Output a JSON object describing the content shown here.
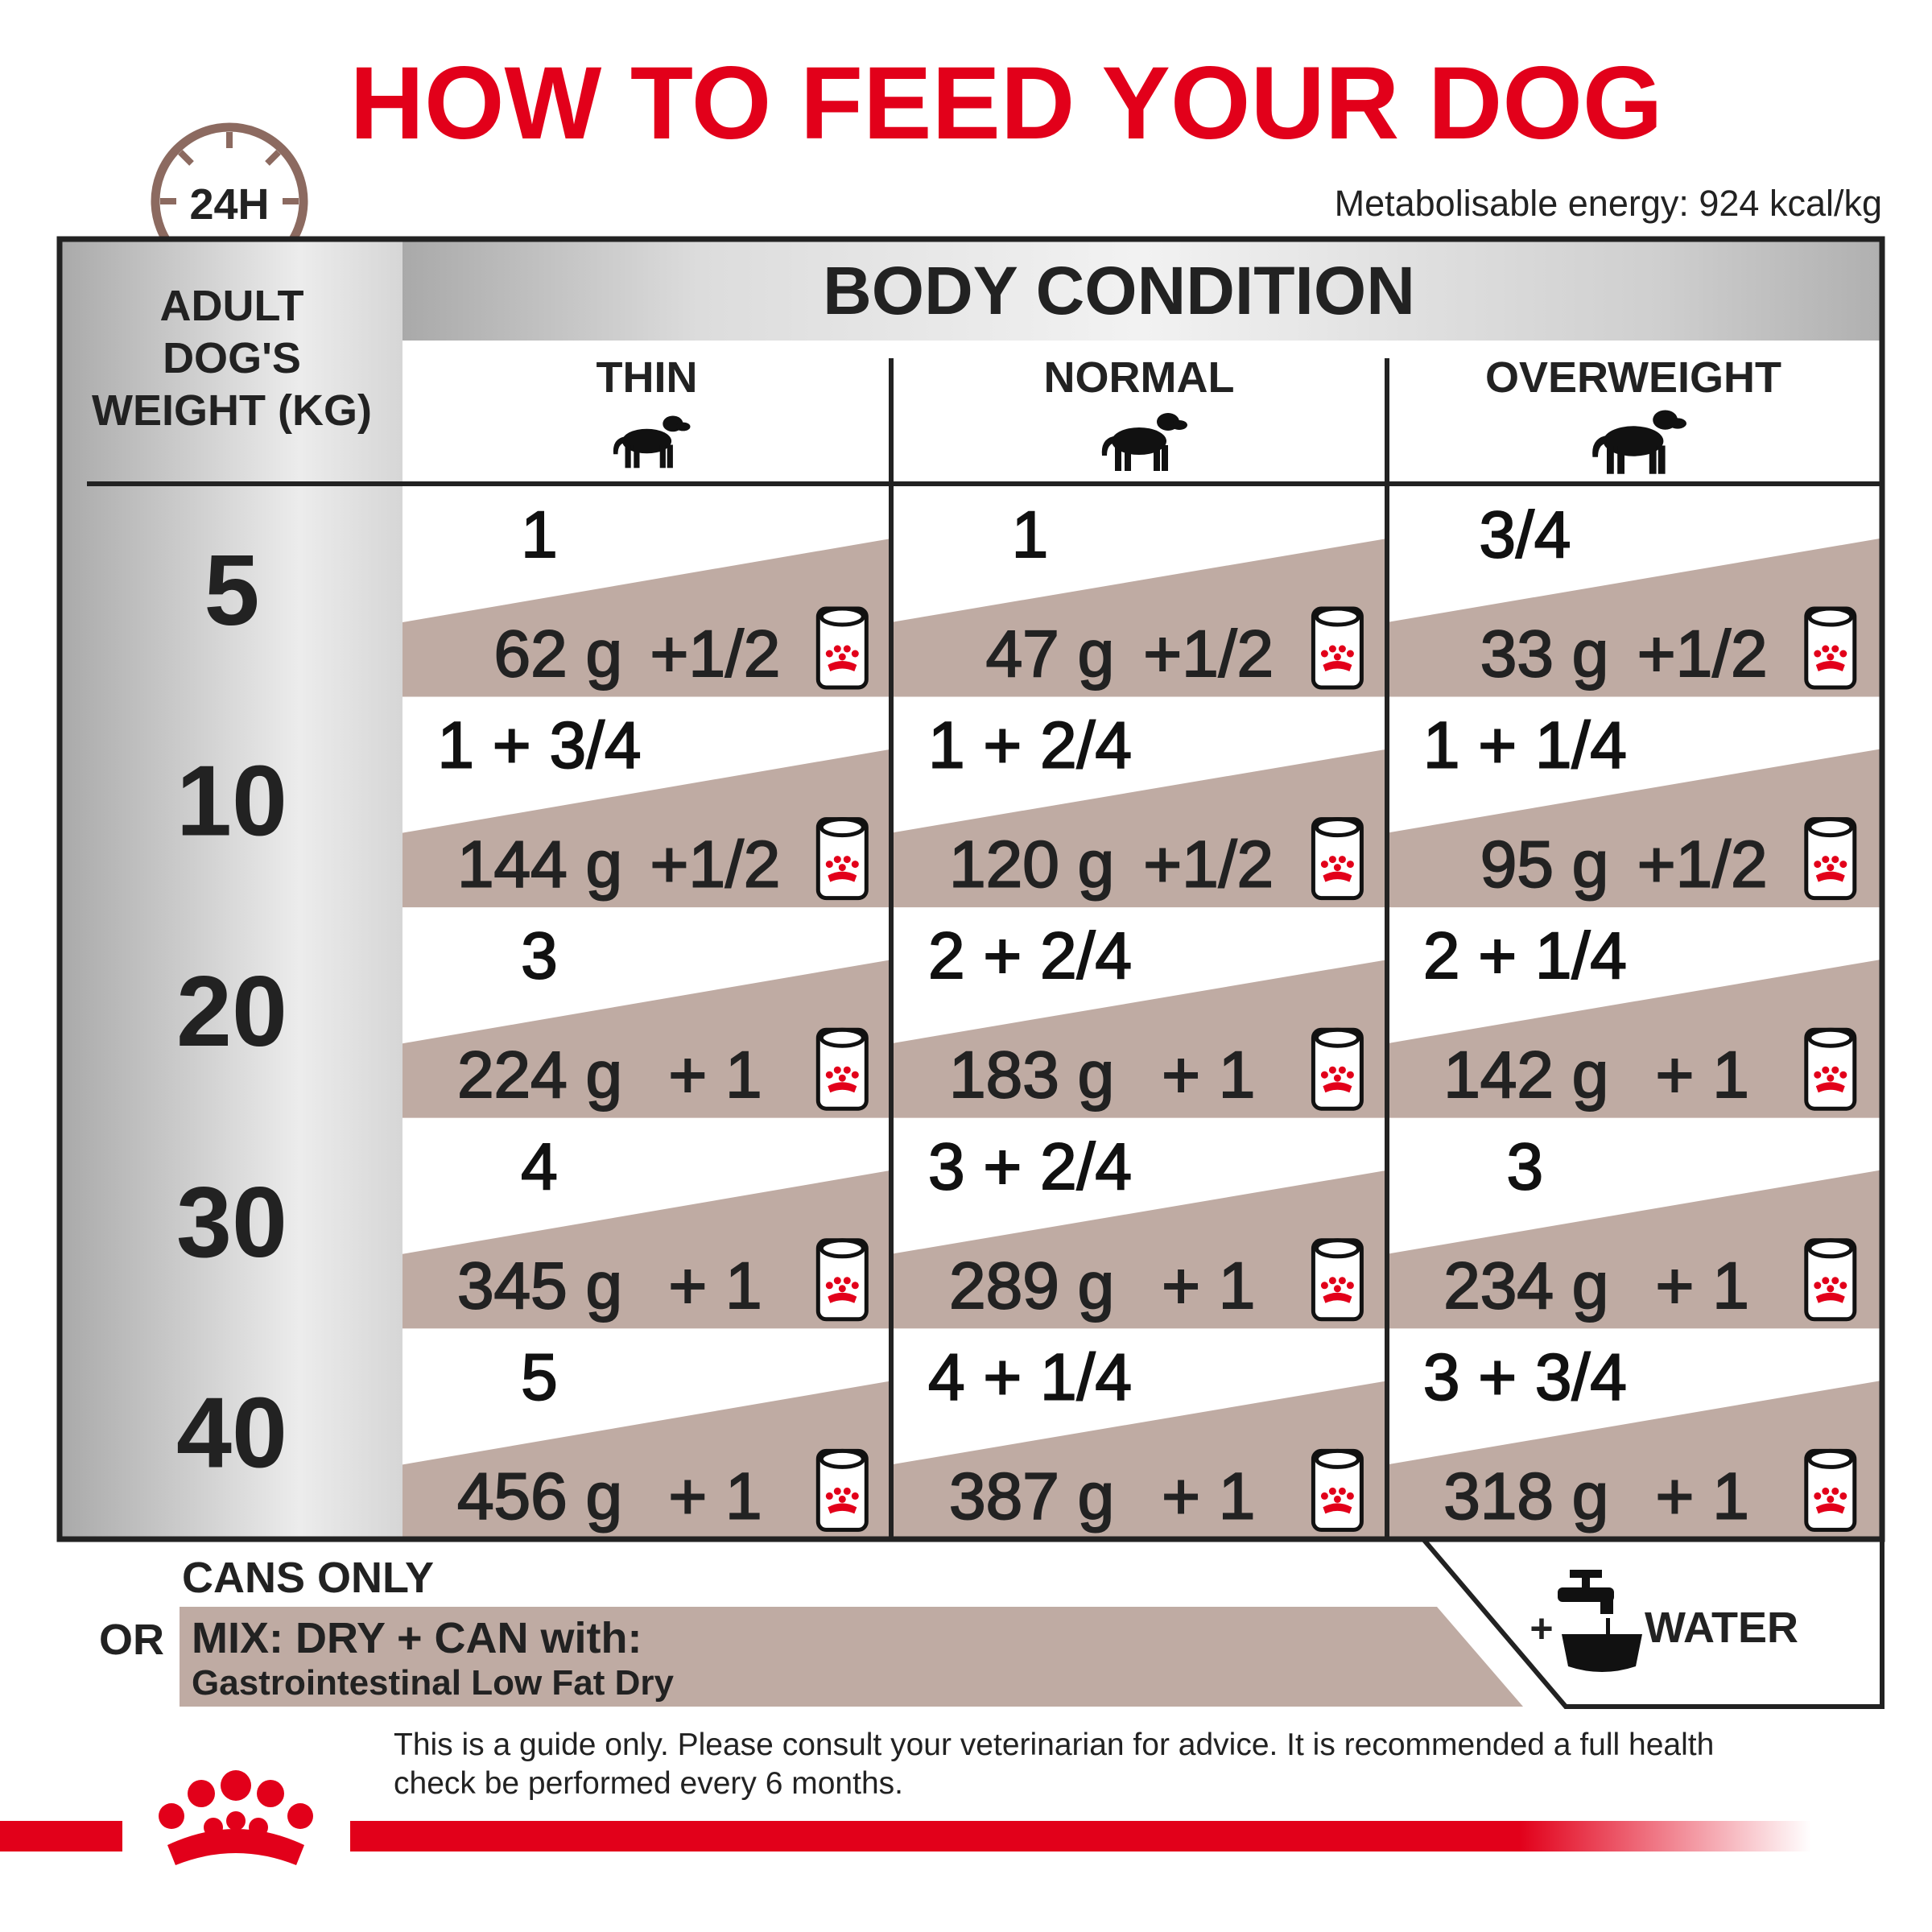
{
  "title": "HOW TO FEED YOUR DOG",
  "clock_label": "24H",
  "energy": "Metabolisable energy: 924 kcal/kg",
  "table": {
    "weight_header": [
      "ADULT",
      "DOG'S",
      "WEIGHT (KG)"
    ],
    "condition_header": "BODY CONDITION",
    "columns": [
      "THIN",
      "NORMAL",
      "OVERWEIGHT"
    ],
    "rows": [
      {
        "weight": "5",
        "cells": [
          {
            "cans": "1",
            "grams": "62 g",
            "plus": "+1/2"
          },
          {
            "cans": "1",
            "grams": "47 g",
            "plus": "+1/2"
          },
          {
            "cans": "3/4",
            "grams": "33 g",
            "plus": "+1/2"
          }
        ]
      },
      {
        "weight": "10",
        "cells": [
          {
            "cans": "1 + 3/4",
            "grams": "144 g",
            "plus": "+1/2"
          },
          {
            "cans": "1 + 2/4",
            "grams": "120 g",
            "plus": "+1/2"
          },
          {
            "cans": "1 + 1/4",
            "grams": "95 g",
            "plus": "+1/2"
          }
        ]
      },
      {
        "weight": "20",
        "cells": [
          {
            "cans": "3",
            "grams": "224 g",
            "plus": "+ 1"
          },
          {
            "cans": "2 + 2/4",
            "grams": "183 g",
            "plus": "+ 1"
          },
          {
            "cans": "2 + 1/4",
            "grams": "142 g",
            "plus": "+ 1"
          }
        ]
      },
      {
        "weight": "30",
        "cells": [
          {
            "cans": "4",
            "grams": "345 g",
            "plus": "+ 1"
          },
          {
            "cans": "3 + 2/4",
            "grams": "289 g",
            "plus": "+ 1"
          },
          {
            "cans": "3",
            "grams": "234 g",
            "plus": "+ 1"
          }
        ]
      },
      {
        "weight": "40",
        "cells": [
          {
            "cans": "5",
            "grams": "456 g",
            "plus": "+ 1"
          },
          {
            "cans": "4 + 1/4",
            "grams": "387 g",
            "plus": "+ 1"
          },
          {
            "cans": "3 + 3/4",
            "grams": "318 g",
            "plus": "+ 1"
          }
        ]
      }
    ]
  },
  "footer": {
    "cans_only": "CANS ONLY",
    "or": "OR",
    "mix": "MIX: DRY + CAN with:",
    "dry_product": "Gastrointestinal Low Fat Dry",
    "plus": "+",
    "water": "WATER",
    "disclaimer": [
      "This is a guide only. Please consult your veterinarian for advice. It is recommended a full health",
      "check be performed every 6 months."
    ]
  }
}
